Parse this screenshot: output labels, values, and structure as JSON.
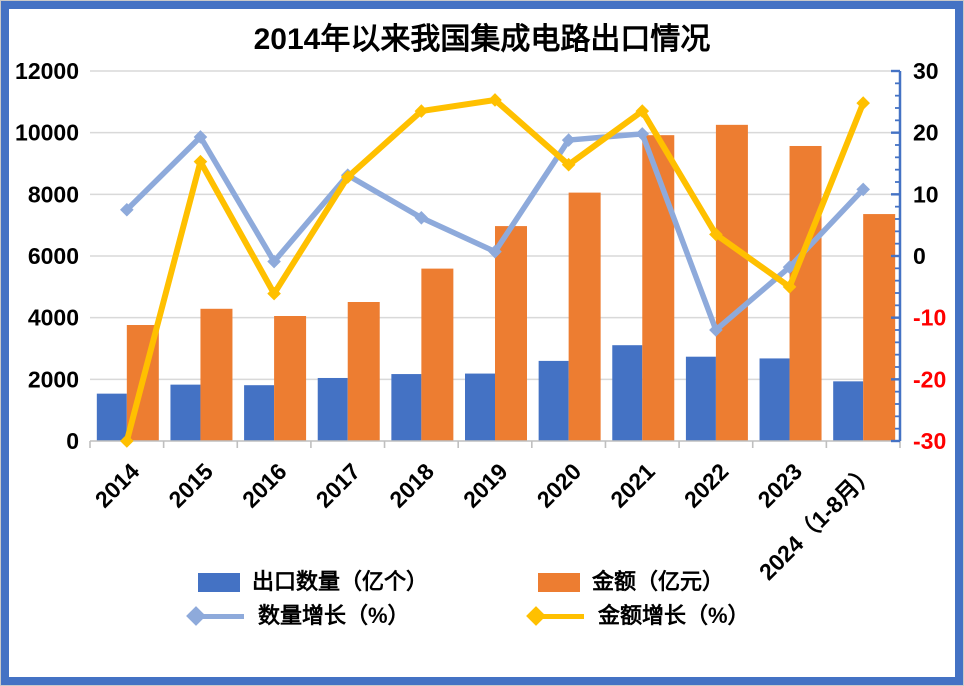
{
  "chart": {
    "background": "#FFFFFF",
    "frame_border_color": "#4472C4"
  },
  "chart_data": {
    "type": "combo",
    "title": "2014年以来我国集成电路出口情况",
    "categories": [
      "2014",
      "2015",
      "2016",
      "2017",
      "2018",
      "2019",
      "2020",
      "2021",
      "2022",
      "2023",
      "2024（1-8月）"
    ],
    "series": [
      {
        "name": "出口数量（亿个）",
        "type": "bar",
        "axis": "left",
        "color": "#4472C4",
        "values": [
          1536,
          1828,
          1810,
          2044,
          2171,
          2187,
          2598,
          3107,
          2734,
          2678,
          1935
        ]
      },
      {
        "name": "金额（亿元）",
        "type": "bar",
        "axis": "left",
        "color": "#ED7D31",
        "values": [
          3762,
          4288,
          4054,
          4508,
          5591,
          6970,
          8056,
          9919,
          10254,
          9568,
          7360
        ]
      },
      {
        "name": "数量增长（%）",
        "type": "line",
        "axis": "right",
        "color": "#8EAADB",
        "marker": "diamond",
        "values": [
          7.5,
          19.3,
          -0.9,
          13.1,
          6.2,
          0.7,
          18.8,
          19.8,
          -12.0,
          -1.8,
          10.8
        ]
      },
      {
        "name": "金额增长（%）",
        "type": "line",
        "axis": "right",
        "color": "#FFC000",
        "marker": "diamond",
        "values": [
          -30,
          15.3,
          -6.1,
          12.8,
          23.5,
          25.3,
          14.8,
          23.5,
          3.5,
          -5.0,
          24.8
        ]
      }
    ],
    "left_axis": {
      "min": 0,
      "max": 12000,
      "step": 2000,
      "tick_labels": [
        "0",
        "2000",
        "4000",
        "6000",
        "8000",
        "10000",
        "12000"
      ],
      "label_color": "#000000"
    },
    "right_axis": {
      "min": -30,
      "max": 30,
      "step": 10,
      "minor_step": 2,
      "tick_labels": [
        "-30",
        "-20",
        "-10",
        "0",
        "10",
        "20",
        "30"
      ],
      "label_color": "#000000",
      "negative_label_color": "#FF0000",
      "line_color": "#4472C4"
    },
    "x_axis": {
      "line_color": "#BFBFBF",
      "label_rotation": -45
    },
    "grid": {
      "show": true,
      "color": "#D9D9D9"
    },
    "legend_position": "bottom"
  }
}
